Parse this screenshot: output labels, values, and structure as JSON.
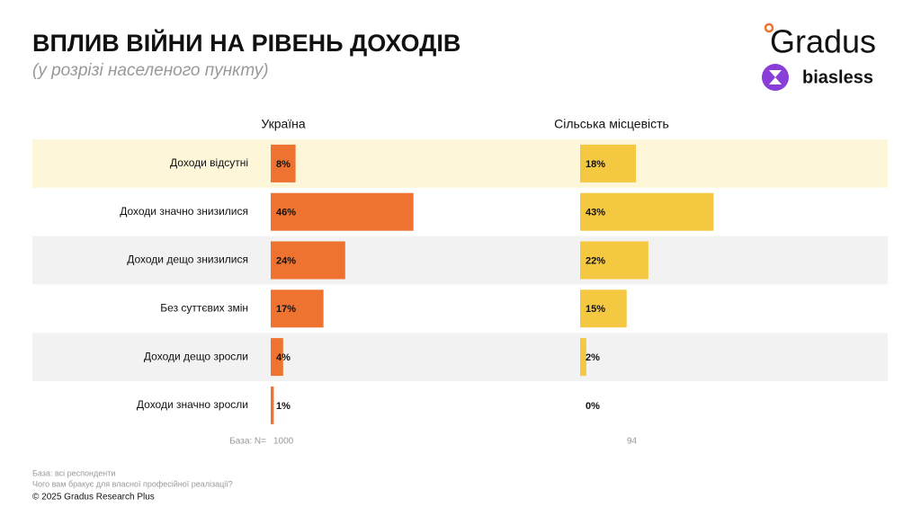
{
  "header": {
    "title": "ВПЛИВ ВІЙНИ НА РІВЕНЬ ДОХОДІВ",
    "subtitle": "(у розрізі населеного пункту)"
  },
  "logos": {
    "gradus": "Gradus",
    "biasless": "biasless"
  },
  "chart_data": {
    "type": "bar",
    "orientation": "horizontal",
    "categories": [
      "Доходи відсутні",
      "Доходи значно знизилися",
      "Доходи дещо знизилися",
      "Без суттєвих змін",
      "Доходи дещо зросли",
      "Доходи значно зросли"
    ],
    "series": [
      {
        "name": "Україна",
        "color": "#ee7330",
        "values": [
          8,
          46,
          24,
          17,
          4,
          1
        ],
        "value_labels": [
          "8%",
          "46%",
          "24%",
          "17%",
          "4%",
          "1%"
        ],
        "base": 1000
      },
      {
        "name": "Сільська місцевість",
        "color": "#f5c842",
        "values": [
          18,
          43,
          22,
          15,
          2,
          0
        ],
        "value_labels": [
          "18%",
          "43%",
          "22%",
          "15%",
          "2%",
          "0%"
        ],
        "base": 94
      }
    ],
    "base_label": "База: N="
  },
  "footer": {
    "notes": [
      "База: всі респонденти",
      "Чого вам бракує для власної професійної реалізації?"
    ],
    "copyright": "© 2025 Gradus Research Plus"
  }
}
